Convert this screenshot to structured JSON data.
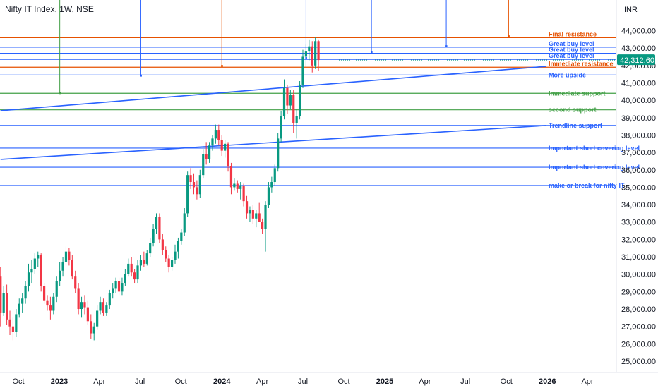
{
  "header": {
    "title": "Nifty IT Index, 1W, NSE"
  },
  "currency": "INR",
  "colors": {
    "up": "#089981",
    "down": "#f23645",
    "blue": "#2962ff",
    "orange": "#e65100",
    "green": "#43a047",
    "price_tag": "#089981",
    "axis_border": "#e0e3eb"
  },
  "chart_data": {
    "type": "candlestick",
    "ylim": [
      24600,
      44600
    ],
    "y_ticks": [
      "25,000.00",
      "26,000.00",
      "27,000.00",
      "28,000.00",
      "29,000.00",
      "30,000.00",
      "31,000.00",
      "32,000.00",
      "33,000.00",
      "34,000.00",
      "35,000.00",
      "36,000.00",
      "37,000.00",
      "38,000.00",
      "39,000.00",
      "40,000.00",
      "41,000.00",
      "42,000.00",
      "43,000.00",
      "44,000.00"
    ],
    "x_ticks": [
      {
        "label": "Oct",
        "date": "2022-10-01",
        "bold": false
      },
      {
        "label": "2023",
        "date": "2023-01-01",
        "bold": true
      },
      {
        "label": "Apr",
        "date": "2023-04-01",
        "bold": false
      },
      {
        "label": "Jul",
        "date": "2023-07-01",
        "bold": false
      },
      {
        "label": "Oct",
        "date": "2023-10-01",
        "bold": false
      },
      {
        "label": "2024",
        "date": "2024-01-01",
        "bold": true
      },
      {
        "label": "Apr",
        "date": "2024-04-01",
        "bold": false
      },
      {
        "label": "Jul",
        "date": "2024-07-01",
        "bold": false
      },
      {
        "label": "Oct",
        "date": "2024-10-01",
        "bold": false
      },
      {
        "label": "2025",
        "date": "2025-01-01",
        "bold": true
      },
      {
        "label": "Apr",
        "date": "2025-04-01",
        "bold": false
      },
      {
        "label": "Jul",
        "date": "2025-07-01",
        "bold": false
      },
      {
        "label": "Oct",
        "date": "2025-10-01",
        "bold": false
      },
      {
        "label": "2026",
        "date": "2026-01-01",
        "bold": true
      },
      {
        "label": "Apr",
        "date": "2026-04-01",
        "bold": false
      }
    ],
    "x_range": [
      "2022-08-22",
      "2026-06-15"
    ],
    "first_candle": "2022-08-22",
    "candle_interval_days": 7,
    "current_price": "42,312.60",
    "current_price_value": 42312.6,
    "candles": [
      {
        "o": 29900,
        "h": 30400,
        "l": 27000,
        "c": 27800
      },
      {
        "o": 27800,
        "h": 29300,
        "l": 27600,
        "c": 28900
      },
      {
        "o": 28900,
        "h": 29400,
        "l": 27100,
        "c": 27400
      },
      {
        "o": 27400,
        "h": 27900,
        "l": 26500,
        "c": 27000
      },
      {
        "o": 27000,
        "h": 27500,
        "l": 26200,
        "c": 26700
      },
      {
        "o": 26700,
        "h": 28000,
        "l": 26400,
        "c": 27700
      },
      {
        "o": 27700,
        "h": 28600,
        "l": 27500,
        "c": 28300
      },
      {
        "o": 28300,
        "h": 28900,
        "l": 27800,
        "c": 28600
      },
      {
        "o": 28600,
        "h": 29600,
        "l": 28300,
        "c": 29300
      },
      {
        "o": 29300,
        "h": 30600,
        "l": 29000,
        "c": 30100
      },
      {
        "o": 30100,
        "h": 30800,
        "l": 29500,
        "c": 30300
      },
      {
        "o": 30300,
        "h": 31200,
        "l": 30000,
        "c": 30900
      },
      {
        "o": 30900,
        "h": 31300,
        "l": 30400,
        "c": 31100
      },
      {
        "o": 31100,
        "h": 31200,
        "l": 29000,
        "c": 29300
      },
      {
        "o": 29300,
        "h": 29500,
        "l": 28300,
        "c": 28500
      },
      {
        "o": 28500,
        "h": 28800,
        "l": 27900,
        "c": 28200
      },
      {
        "o": 28200,
        "h": 28700,
        "l": 27400,
        "c": 27900
      },
      {
        "o": 27900,
        "h": 28900,
        "l": 27700,
        "c": 28700
      },
      {
        "o": 28700,
        "h": 29900,
        "l": 28400,
        "c": 29600
      },
      {
        "o": 29600,
        "h": 30700,
        "l": 29300,
        "c": 30200
      },
      {
        "o": 30200,
        "h": 31000,
        "l": 29900,
        "c": 30700
      },
      {
        "o": 30700,
        "h": 31600,
        "l": 30500,
        "c": 31300
      },
      {
        "o": 31300,
        "h": 31500,
        "l": 30500,
        "c": 30800
      },
      {
        "o": 30800,
        "h": 31100,
        "l": 29700,
        "c": 29900
      },
      {
        "o": 29900,
        "h": 30200,
        "l": 28900,
        "c": 29200
      },
      {
        "o": 29200,
        "h": 29500,
        "l": 27700,
        "c": 28000
      },
      {
        "o": 28000,
        "h": 28700,
        "l": 27500,
        "c": 28400
      },
      {
        "o": 28400,
        "h": 28800,
        "l": 27700,
        "c": 28100
      },
      {
        "o": 28100,
        "h": 28500,
        "l": 27100,
        "c": 27300
      },
      {
        "o": 27300,
        "h": 27700,
        "l": 26300,
        "c": 26600
      },
      {
        "o": 26600,
        "h": 27200,
        "l": 26200,
        "c": 27000
      },
      {
        "o": 27000,
        "h": 28200,
        "l": 26800,
        "c": 27900
      },
      {
        "o": 27900,
        "h": 28700,
        "l": 27700,
        "c": 28400
      },
      {
        "o": 28400,
        "h": 28600,
        "l": 27600,
        "c": 27800
      },
      {
        "o": 27800,
        "h": 28400,
        "l": 27600,
        "c": 28200
      },
      {
        "o": 28200,
        "h": 29100,
        "l": 28000,
        "c": 28900
      },
      {
        "o": 28900,
        "h": 29500,
        "l": 28600,
        "c": 29200
      },
      {
        "o": 29200,
        "h": 29800,
        "l": 28900,
        "c": 29600
      },
      {
        "o": 29600,
        "h": 29800,
        "l": 28800,
        "c": 29000
      },
      {
        "o": 29000,
        "h": 29800,
        "l": 28800,
        "c": 29500
      },
      {
        "o": 29500,
        "h": 30300,
        "l": 29300,
        "c": 30000
      },
      {
        "o": 30000,
        "h": 30900,
        "l": 29900,
        "c": 30600
      },
      {
        "o": 30600,
        "h": 31000,
        "l": 29900,
        "c": 30100
      },
      {
        "o": 30100,
        "h": 30300,
        "l": 29500,
        "c": 29700
      },
      {
        "o": 29700,
        "h": 30800,
        "l": 29500,
        "c": 30500
      },
      {
        "o": 30500,
        "h": 31100,
        "l": 30200,
        "c": 30800
      },
      {
        "o": 30800,
        "h": 31300,
        "l": 30400,
        "c": 30600
      },
      {
        "o": 30600,
        "h": 31400,
        "l": 30500,
        "c": 31200
      },
      {
        "o": 31200,
        "h": 32100,
        "l": 31000,
        "c": 31800
      },
      {
        "o": 31800,
        "h": 32900,
        "l": 31600,
        "c": 32600
      },
      {
        "o": 32600,
        "h": 33500,
        "l": 32300,
        "c": 33300
      },
      {
        "o": 33300,
        "h": 33500,
        "l": 31800,
        "c": 32000
      },
      {
        "o": 32000,
        "h": 32300,
        "l": 31100,
        "c": 31400
      },
      {
        "o": 31400,
        "h": 31600,
        "l": 30700,
        "c": 30900
      },
      {
        "o": 30900,
        "h": 31100,
        "l": 30100,
        "c": 30400
      },
      {
        "o": 30400,
        "h": 31000,
        "l": 30200,
        "c": 30800
      },
      {
        "o": 30800,
        "h": 31700,
        "l": 30600,
        "c": 31300
      },
      {
        "o": 31300,
        "h": 32100,
        "l": 30900,
        "c": 31900
      },
      {
        "o": 31900,
        "h": 32600,
        "l": 31700,
        "c": 32400
      },
      {
        "o": 32400,
        "h": 33800,
        "l": 32200,
        "c": 33500
      },
      {
        "o": 33500,
        "h": 35900,
        "l": 33300,
        "c": 35700
      },
      {
        "o": 35700,
        "h": 36100,
        "l": 34900,
        "c": 35300
      },
      {
        "o": 35300,
        "h": 35800,
        "l": 34600,
        "c": 35000
      },
      {
        "o": 35000,
        "h": 35400,
        "l": 34300,
        "c": 34600
      },
      {
        "o": 34600,
        "h": 36000,
        "l": 34400,
        "c": 35700
      },
      {
        "o": 35700,
        "h": 37200,
        "l": 35500,
        "c": 36900
      },
      {
        "o": 36900,
        "h": 37600,
        "l": 36300,
        "c": 36600
      },
      {
        "o": 36600,
        "h": 37600,
        "l": 36400,
        "c": 37400
      },
      {
        "o": 37400,
        "h": 38000,
        "l": 37100,
        "c": 37800
      },
      {
        "o": 37800,
        "h": 38600,
        "l": 37500,
        "c": 38300
      },
      {
        "o": 38300,
        "h": 38600,
        "l": 37400,
        "c": 37700
      },
      {
        "o": 37700,
        "h": 38000,
        "l": 36800,
        "c": 37100
      },
      {
        "o": 37100,
        "h": 37700,
        "l": 36700,
        "c": 37500
      },
      {
        "o": 37500,
        "h": 37600,
        "l": 35900,
        "c": 36200
      },
      {
        "o": 36200,
        "h": 36400,
        "l": 34600,
        "c": 35000
      },
      {
        "o": 35000,
        "h": 35500,
        "l": 34800,
        "c": 35200
      },
      {
        "o": 35200,
        "h": 35400,
        "l": 34700,
        "c": 34900
      },
      {
        "o": 34900,
        "h": 35300,
        "l": 34300,
        "c": 35100
      },
      {
        "o": 35100,
        "h": 35200,
        "l": 33900,
        "c": 34200
      },
      {
        "o": 34200,
        "h": 34500,
        "l": 33200,
        "c": 33500
      },
      {
        "o": 33500,
        "h": 33900,
        "l": 33000,
        "c": 33700
      },
      {
        "o": 33700,
        "h": 34000,
        "l": 32900,
        "c": 33200
      },
      {
        "o": 33200,
        "h": 33700,
        "l": 32700,
        "c": 33500
      },
      {
        "o": 33500,
        "h": 34100,
        "l": 33100,
        "c": 33000
      },
      {
        "o": 33000,
        "h": 33200,
        "l": 32300,
        "c": 32600
      },
      {
        "o": 32600,
        "h": 34200,
        "l": 31300,
        "c": 34000
      },
      {
        "o": 34000,
        "h": 35300,
        "l": 33800,
        "c": 35000
      },
      {
        "o": 35000,
        "h": 35600,
        "l": 34700,
        "c": 35300
      },
      {
        "o": 35300,
        "h": 36300,
        "l": 35100,
        "c": 36100
      },
      {
        "o": 36100,
        "h": 38100,
        "l": 35900,
        "c": 37800
      },
      {
        "o": 37800,
        "h": 39400,
        "l": 37600,
        "c": 39100
      },
      {
        "o": 39100,
        "h": 41200,
        "l": 38900,
        "c": 40700
      },
      {
        "o": 40700,
        "h": 40900,
        "l": 39200,
        "c": 39700
      },
      {
        "o": 39700,
        "h": 40600,
        "l": 39500,
        "c": 40300
      },
      {
        "o": 40300,
        "h": 40600,
        "l": 38100,
        "c": 38700
      },
      {
        "o": 38700,
        "h": 39500,
        "l": 37800,
        "c": 39100
      },
      {
        "o": 39100,
        "h": 41100,
        "l": 38900,
        "c": 40900
      },
      {
        "o": 40900,
        "h": 42900,
        "l": 40700,
        "c": 42500
      },
      {
        "o": 42500,
        "h": 43200,
        "l": 41900,
        "c": 42800
      },
      {
        "o": 42800,
        "h": 43500,
        "l": 42300,
        "c": 43100
      },
      {
        "o": 43100,
        "h": 43400,
        "l": 41600,
        "c": 42000
      },
      {
        "o": 42000,
        "h": 43600,
        "l": 41800,
        "c": 43400
      },
      {
        "o": 43400,
        "h": 43500,
        "l": 41700,
        "c": 42312.6
      }
    ],
    "levels": [
      {
        "label": "Final resistance",
        "price": 43600,
        "color": "orange",
        "label_side": "above"
      },
      {
        "label": "Great buy level",
        "price": 43050,
        "color": "blue",
        "label_side": "above"
      },
      {
        "label": "Great buy level",
        "price": 42700,
        "color": "blue",
        "label_side": "above"
      },
      {
        "label": "Great buy level",
        "price": 42350,
        "color": "blue",
        "label_side": "above"
      },
      {
        "label": "Immediate resistance",
        "price": 41900,
        "color": "orange",
        "label_side": "above"
      },
      {
        "label": "More upside",
        "price": 41450,
        "color": "blue",
        "label_side": "below"
      },
      {
        "label": "Immediate support",
        "price": 40400,
        "color": "green",
        "label_side": "below"
      },
      {
        "label": "second support",
        "price": 39450,
        "color": "green",
        "label_side": "below"
      },
      {
        "label": "Trendline support",
        "price": 38550,
        "color": "blue",
        "label_side": "below"
      },
      {
        "label": "Important short covering level",
        "price": 37250,
        "color": "blue",
        "label_side": "below"
      },
      {
        "label": "Important short covering level",
        "price": 36150,
        "color": "blue",
        "label_side": "below"
      },
      {
        "label": "make or break for nifty IT",
        "price": 35100,
        "color": "blue",
        "label_side": "below"
      }
    ],
    "trendlines": [
      {
        "color": "blue",
        "from": {
          "date": "2022-08-22",
          "price": 39400
        },
        "to": {
          "date": "2025-12-29",
          "price": 41950
        }
      },
      {
        "color": "blue",
        "from": {
          "date": "2022-08-22",
          "price": 36600
        },
        "to": {
          "date": "2025-12-29",
          "price": 38550
        }
      }
    ],
    "vertical_markers": [
      {
        "color": "green",
        "date": "2023-01-02",
        "price": 40400
      },
      {
        "color": "blue",
        "date": "2023-07-03",
        "price": 41400
      },
      {
        "color": "orange",
        "date": "2024-01-01",
        "price": 41950
      },
      {
        "color": "blue",
        "date": "2024-07-08",
        "price": 42400
      },
      {
        "color": "blue",
        "date": "2024-12-02",
        "price": 42750
      },
      {
        "color": "blue",
        "date": "2025-05-19",
        "price": 43080
      },
      {
        "color": "orange",
        "date": "2025-10-06",
        "price": 43650
      }
    ]
  }
}
